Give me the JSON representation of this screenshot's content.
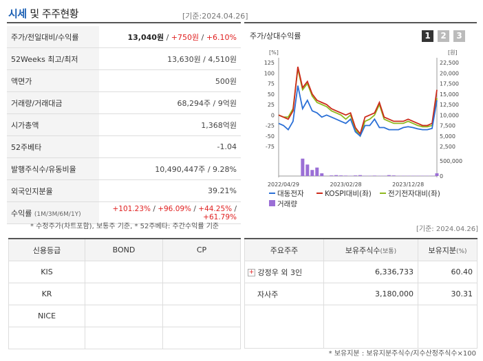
{
  "header": {
    "title": "시세",
    "subtitle": "및 주주현황",
    "date_left": "[기준:2024.04.26]",
    "date_right": "[기준: 2024.04.26]"
  },
  "price_table": {
    "rows": [
      {
        "label": "주가/전일대비/수익률",
        "price": "13,040원",
        "sep1": " / ",
        "change": "+750원",
        "sep2": " / ",
        "rate": "+6.10%"
      },
      {
        "label": "52Weeks 최고/최저",
        "value": "13,630원 / 4,510원"
      },
      {
        "label": "액면가",
        "value": "500원"
      },
      {
        "label": "거래량/거래대금",
        "value": "68,294주 / 9억원"
      },
      {
        "label": "시가총액",
        "value": "1,368억원"
      },
      {
        "label": "52주베타",
        "value": "-1.04"
      },
      {
        "label": "발행주식수/유동비율",
        "value": "10,490,447주 / 9.28%"
      },
      {
        "label": "외국인지분율",
        "value": "39.21%"
      },
      {
        "label": "수익률",
        "label_small": "(1M/3M/6M/1Y)",
        "r1": "+101.23%",
        "r2": "+96.09%",
        "r3": "+44.25%",
        "r4": "+61.79%",
        "sep": " / "
      }
    ],
    "note": "* 수정주가(차트포함), 보통주 기준, * 52주베타: 주간수익률 기준"
  },
  "chart": {
    "title": "주가/상대수익률",
    "tabs": [
      "1",
      "2",
      "3"
    ],
    "left_unit": "[%]",
    "right_unit": "[원]",
    "left_ticks": [
      "125",
      "100",
      "75",
      "50",
      "25",
      "0",
      "-25",
      "-50",
      "-75"
    ],
    "right_ticks": [
      "22,500",
      "20,000",
      "17,500",
      "15,000",
      "12,500",
      "10,000",
      "7,500",
      "5,000",
      "2,500"
    ],
    "vol_tick_top": "500,000",
    "vol_tick_zero": "0",
    "x_labels": [
      "2022/04/29",
      "2023/02/28",
      "2023/12/28"
    ],
    "legend": {
      "s1": "대동전자",
      "s2": "KOSPI대비(좌)",
      "s3": "전기전자대비(좌)",
      "vol": "거래량"
    },
    "colors": {
      "s1": "#2a6fd6",
      "s2": "#cc2a1a",
      "s3": "#8fb81e",
      "vol": "#9b6fd6"
    }
  },
  "chart_data": {
    "type": "line",
    "x_count": 34,
    "series": [
      {
        "name": "대동전자",
        "values": [
          -20,
          -25,
          -35,
          -15,
          70,
          15,
          35,
          10,
          5,
          -5,
          0,
          -5,
          -10,
          -15,
          -20,
          -10,
          -40,
          -50,
          -25,
          -25,
          -10,
          -30,
          -30,
          -35,
          -35,
          -35,
          -30,
          -28,
          -30,
          -33,
          -35,
          -35,
          -32,
          35
        ]
      },
      {
        "name": "KOSPI대비(좌)",
        "values": [
          0,
          -5,
          -10,
          10,
          115,
          65,
          80,
          50,
          35,
          30,
          25,
          15,
          10,
          5,
          0,
          5,
          -30,
          -45,
          -5,
          0,
          5,
          30,
          -5,
          -10,
          -15,
          -15,
          -15,
          -10,
          -15,
          -20,
          -25,
          -25,
          -20,
          60
        ]
      },
      {
        "name": "전기전자대비(좌)",
        "values": [
          0,
          -5,
          -5,
          15,
          110,
          60,
          75,
          45,
          30,
          25,
          20,
          10,
          5,
          0,
          -10,
          0,
          -35,
          -50,
          -15,
          -10,
          0,
          25,
          -10,
          -15,
          -20,
          -20,
          -20,
          -15,
          -20,
          -25,
          -28,
          -28,
          -25,
          40
        ]
      }
    ],
    "volume": [
      0,
      0,
      0,
      0,
      0,
      620000,
      380000,
      200000,
      280000,
      90000,
      0,
      20000,
      30000,
      20000,
      15000,
      10000,
      20000,
      30000,
      10000,
      10000,
      15000,
      10000,
      10000,
      30000,
      20000,
      10000,
      10000,
      10000,
      10000,
      10000,
      10000,
      10000,
      10000,
      90000
    ],
    "ylim_left": [
      -75,
      125
    ],
    "ylim_right": [
      2500,
      22500
    ]
  },
  "credit_table": {
    "headers": [
      "신용등급",
      "BOND",
      "CP"
    ],
    "rows": [
      [
        "KIS",
        "",
        ""
      ],
      [
        "KR",
        "",
        ""
      ],
      [
        "NICE",
        "",
        ""
      ],
      [
        "",
        "",
        ""
      ]
    ]
  },
  "holder_table": {
    "headers": [
      "주요주주",
      "보유주식수",
      "(보통)",
      "보유지분",
      "(%)"
    ],
    "rows": [
      {
        "name": "강정우 외 3인",
        "shares": "6,336,733",
        "pct": "60.40"
      },
      {
        "name": "자사주",
        "shares": "3,180,000",
        "pct": "30.31"
      },
      {
        "name": "",
        "shares": "",
        "pct": ""
      }
    ],
    "footnote": "* 보유지분 : 보유지분주식수/지수산정주식수×100"
  }
}
